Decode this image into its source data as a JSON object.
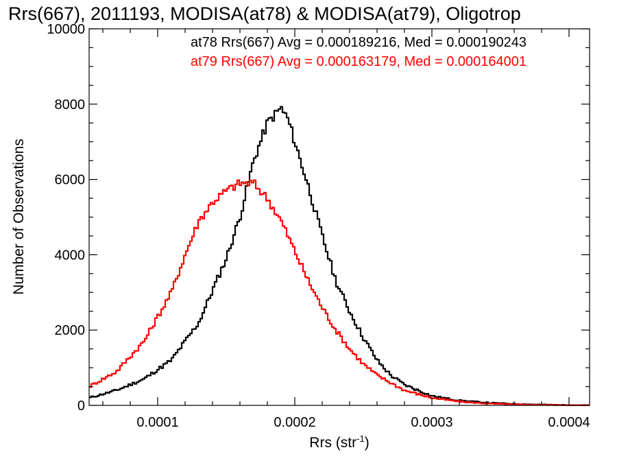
{
  "chart_data": {
    "type": "histogram",
    "title": "Rrs(667), 2011193, MODISA(at78) & MODISA(at79), Oligotrop",
    "xlabel": "Rrs (str",
    "xlabel_sup": "-1",
    "xlabel_close": ")",
    "ylabel": "Number of Observations",
    "xlim": [
      5e-05,
      0.000415
    ],
    "ylim": [
      0,
      10000
    ],
    "x_ticks": [
      0.0001,
      0.0002,
      0.0003,
      0.0004
    ],
    "x_tick_labels": [
      "0.0001",
      "0.0002",
      "0.0003",
      "0.0004"
    ],
    "y_ticks": [
      0,
      2000,
      4000,
      6000,
      8000,
      10000
    ],
    "y_tick_labels": [
      "0",
      "2000",
      "4000",
      "6000",
      "8000",
      "10000"
    ],
    "legend_position": "top-right",
    "series": [
      {
        "name": "at78",
        "color": "#000000",
        "annotation": "at78 Rrs(667) Avg = 0.000189216, Med = 0.000190243",
        "x": [
          5e-05,
          7e-05,
          9e-05,
          0.00011,
          0.00013,
          0.00015,
          0.00016,
          0.00017,
          0.00018,
          0.00019,
          0.000195,
          0.0002,
          0.00021,
          0.00022,
          0.00023,
          0.00024,
          0.00025,
          0.00026,
          0.00027,
          0.00028,
          0.0003,
          0.00032,
          0.00034,
          0.00036,
          0.00038,
          0.0004,
          0.000415
        ],
        "y": [
          200,
          400,
          700,
          1200,
          2200,
          3900,
          5000,
          6500,
          7500,
          7900,
          7600,
          7000,
          5800,
          4500,
          3300,
          2500,
          1800,
          1200,
          800,
          550,
          250,
          130,
          70,
          40,
          20,
          10,
          5
        ]
      },
      {
        "name": "at79",
        "color": "#ff0000",
        "annotation": "at79 Rrs(667) Avg = 0.000163179, Med = 0.000164001",
        "x": [
          5e-05,
          7e-05,
          9e-05,
          0.00011,
          0.00012,
          0.00013,
          0.00014,
          0.00015,
          0.00016,
          0.00017,
          0.00018,
          0.00019,
          0.0002,
          0.00021,
          0.00022,
          0.00023,
          0.00024,
          0.00025,
          0.00026,
          0.00028,
          0.0003,
          0.00032,
          0.00034,
          0.00036,
          0.00038,
          0.0004,
          0.000415
        ],
        "y": [
          500,
          900,
          1700,
          3000,
          4000,
          4900,
          5400,
          5700,
          5900,
          5900,
          5500,
          4900,
          4100,
          3300,
          2600,
          2000,
          1500,
          1100,
          800,
          400,
          200,
          100,
          50,
          25,
          12,
          6,
          3
        ]
      }
    ]
  }
}
